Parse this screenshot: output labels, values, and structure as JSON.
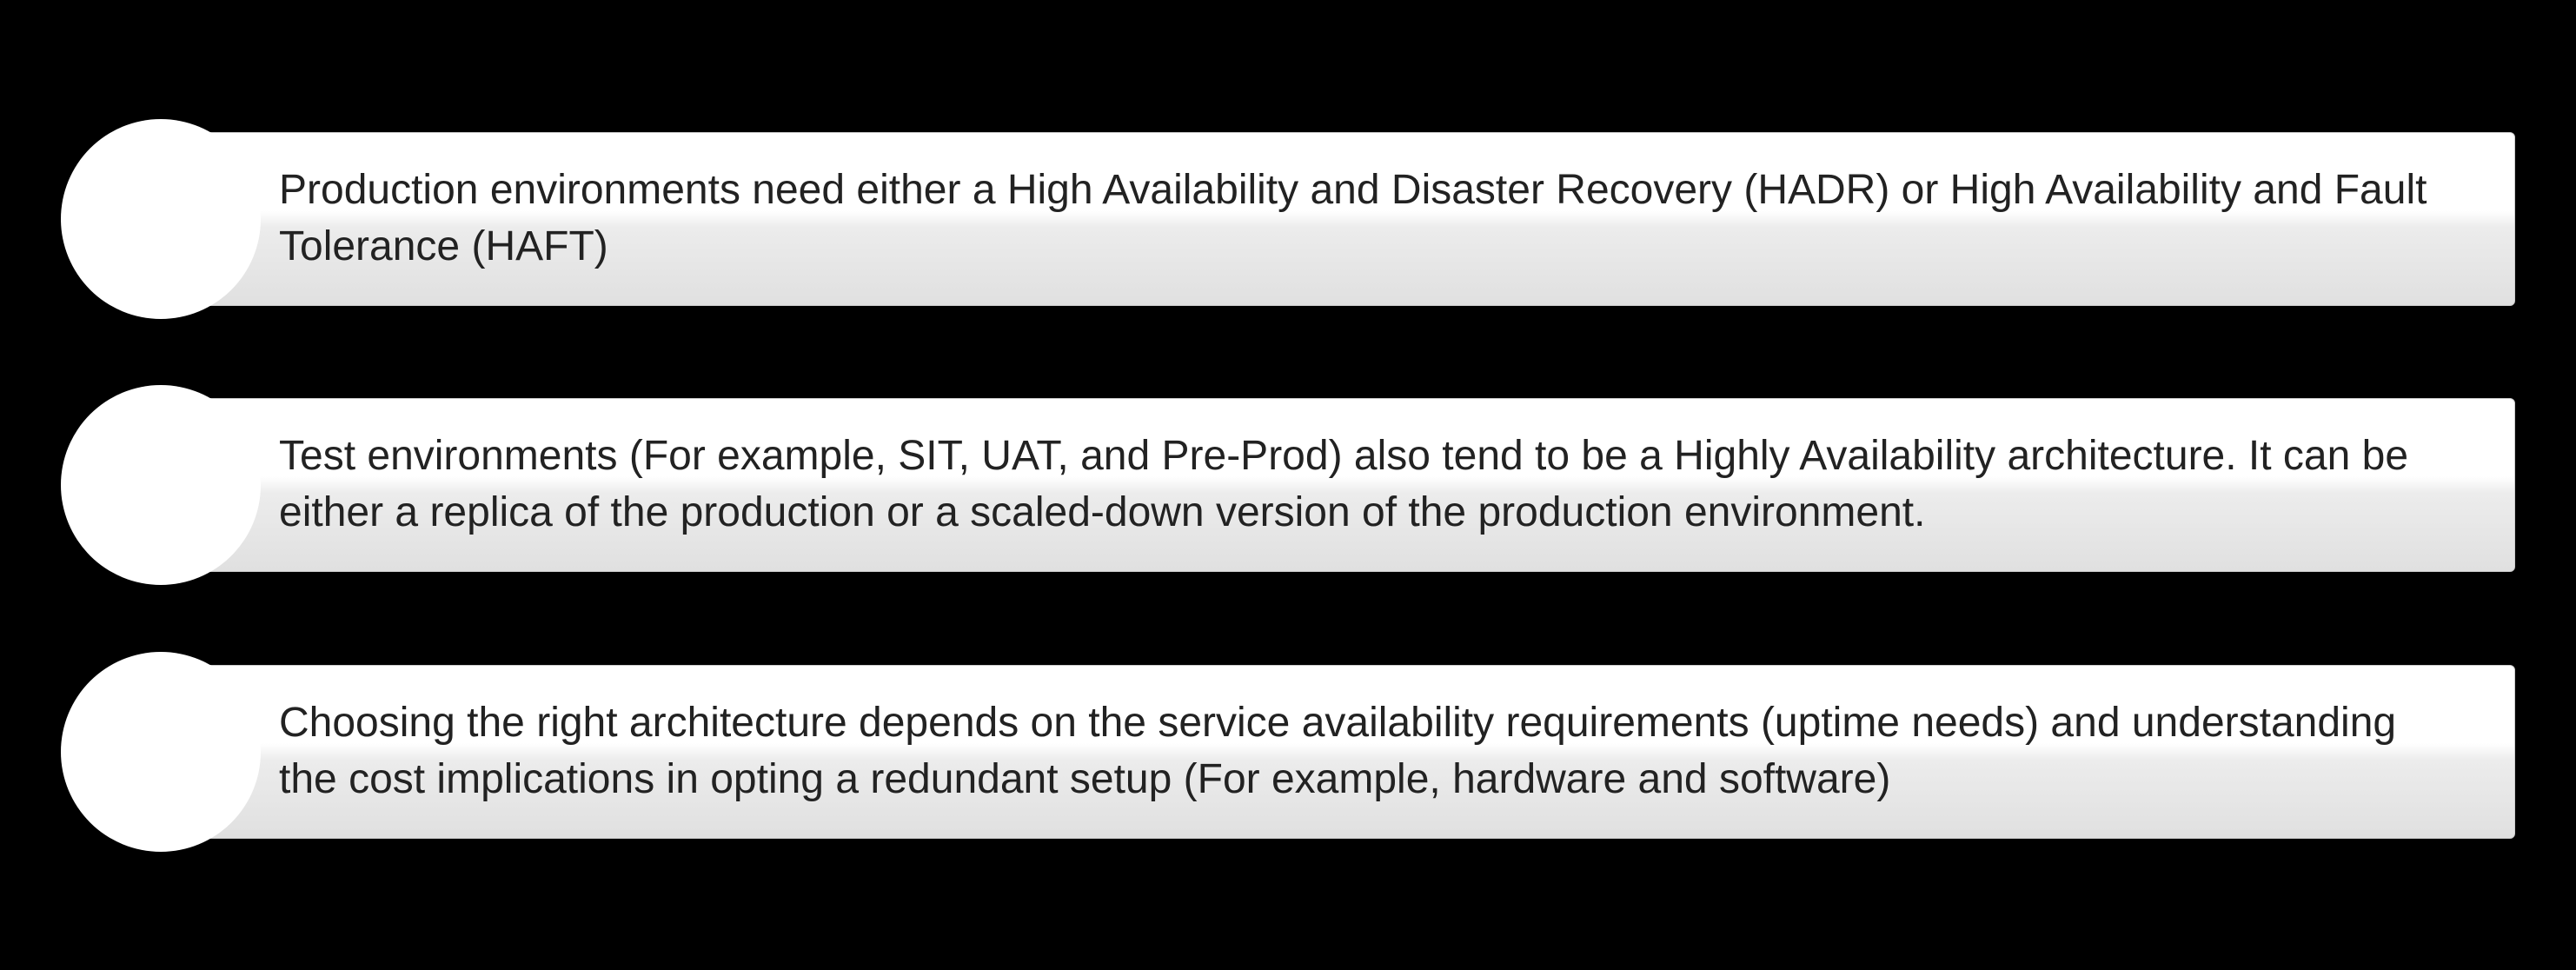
{
  "infographic": {
    "type": "infographic",
    "background_color": "#000000",
    "circle_color": "#ffffff",
    "box_gradient_start": "#ffffff",
    "box_gradient_end": "#e0e0e0",
    "text_color": "#222222",
    "font_size": 48,
    "items": [
      {
        "text": "Production environments need either a High Availability and Disaster Recovery (HADR) or High Availability and Fault Tolerance (HAFT)"
      },
      {
        "text": "Test environments (For example, SIT, UAT, and Pre-Prod) also tend to be a Highly Availability architecture. It can be either a replica of the production or a scaled-down version of the production environment."
      },
      {
        "text": "Choosing the right architecture depends on the service availability requirements (uptime needs) and understanding the cost implications in opting a redundant setup (For example, hardware and software)"
      }
    ]
  }
}
